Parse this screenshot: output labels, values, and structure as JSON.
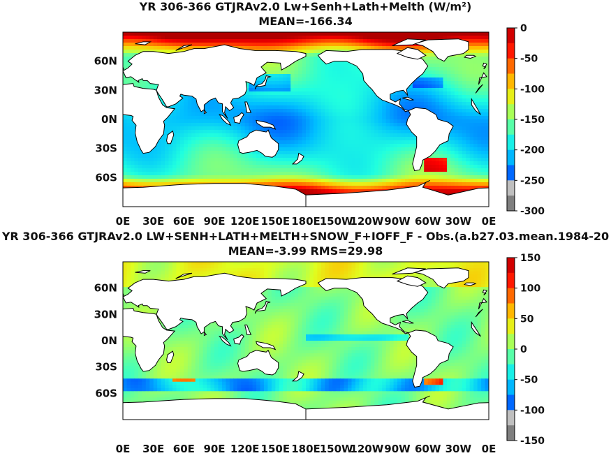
{
  "chart_data": [
    {
      "type": "heatmap",
      "title": "YR 306-366 GTJRAv2.0 Lw+Senh+Lath+Melth (W/m²)",
      "subtitle": "MEAN=-166.34",
      "mean": -166.34,
      "x_ticks": [
        "0E",
        "30E",
        "60E",
        "90E",
        "120E",
        "150E",
        "180E",
        "150W",
        "120W",
        "90W",
        "60W",
        "30W",
        "0E"
      ],
      "y_ticks": [
        "60N",
        "30N",
        "0N",
        "30S",
        "60S"
      ],
      "colorbar": {
        "ticks": [
          "0",
          "-50",
          "-100",
          "-150",
          "-200",
          "-250",
          "-300"
        ],
        "range": [
          -300,
          0
        ]
      }
    },
    {
      "type": "heatmap",
      "title": "YR 306-366 GTJRAv2.0 LW+SENH+LATH+MELTH+SNOW_F+IOFF_F - Obs.(a.b27.03.mean.1984-20",
      "subtitle": "MEAN=-3.99 RMS=29.98",
      "mean": -3.99,
      "rms": 29.98,
      "x_ticks": [
        "0E",
        "30E",
        "60E",
        "90E",
        "120E",
        "150E",
        "180E",
        "150W",
        "120W",
        "90W",
        "60W",
        "30W",
        "0E"
      ],
      "y_ticks": [
        "60N",
        "30N",
        "0N",
        "30S",
        "60S"
      ],
      "colorbar": {
        "ticks": [
          "150",
          "100",
          "50",
          "0",
          "-50",
          "-100",
          "-150"
        ],
        "range": [
          -150,
          150
        ]
      }
    }
  ],
  "colors": {
    "jet": [
      "#00008f",
      "#0000ff",
      "#0060ff",
      "#00bfff",
      "#20ffdf",
      "#80ff80",
      "#dfff20",
      "#ffbf00",
      "#ff6000",
      "#ff0000",
      "#b00000"
    ],
    "land": "#ffffff",
    "coast": "#000000"
  }
}
